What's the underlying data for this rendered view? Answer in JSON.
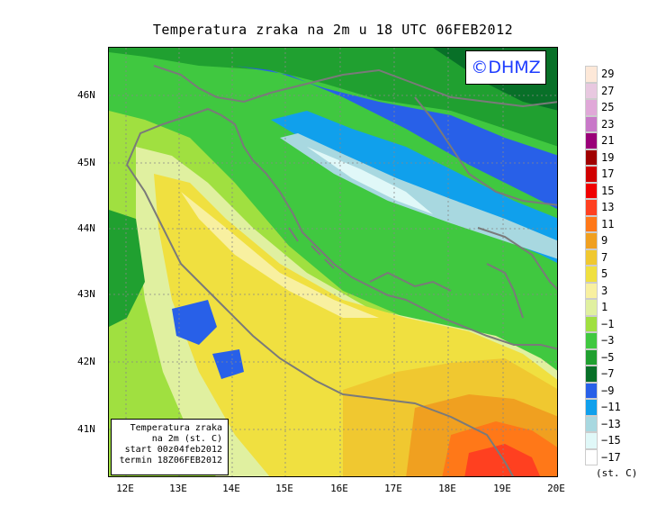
{
  "title": "Temperatura zraka na 2m u 18 UTC 06FEB2012",
  "logo_text": "©DHMZ",
  "info": {
    "line1": "Temperatura zraka",
    "line2": "na 2m (st. C)",
    "line3": "start 00z04feb2012",
    "line4": "termin 18Z06FEB2012"
  },
  "lat_labels": [
    "46N",
    "45N",
    "44N",
    "43N",
    "42N",
    "41N"
  ],
  "lon_labels": [
    "12E",
    "13E",
    "14E",
    "15E",
    "16E",
    "17E",
    "18E",
    "19E",
    "20E"
  ],
  "legend": {
    "units": "(st. C)",
    "labels": [
      "29",
      "27",
      "25",
      "23",
      "21",
      "19",
      "17",
      "15",
      "13",
      "11",
      "9",
      "7",
      "5",
      "3",
      "1",
      "−1",
      "−3",
      "−5",
      "−7",
      "−9",
      "−11",
      "−13",
      "−15",
      "−17"
    ],
    "colors": [
      "#fde8d8",
      "#e8c8e0",
      "#e0a8d8",
      "#c878c8",
      "#9a0078",
      "#a00000",
      "#d00000",
      "#f00000",
      "#ff4020",
      "#ff7818",
      "#f0a020",
      "#f0c830",
      "#f0e040",
      "#f8f0a0",
      "#e0f0a0",
      "#a0e040",
      "#40c840",
      "#20a030",
      "#087028",
      "#2860e8",
      "#10a0ec",
      "#a8d8e0",
      "#e0f8f8",
      "#ffffff"
    ]
  },
  "colors": {
    "accent": "#1e3cff",
    "coast": "#7a7a7a"
  }
}
